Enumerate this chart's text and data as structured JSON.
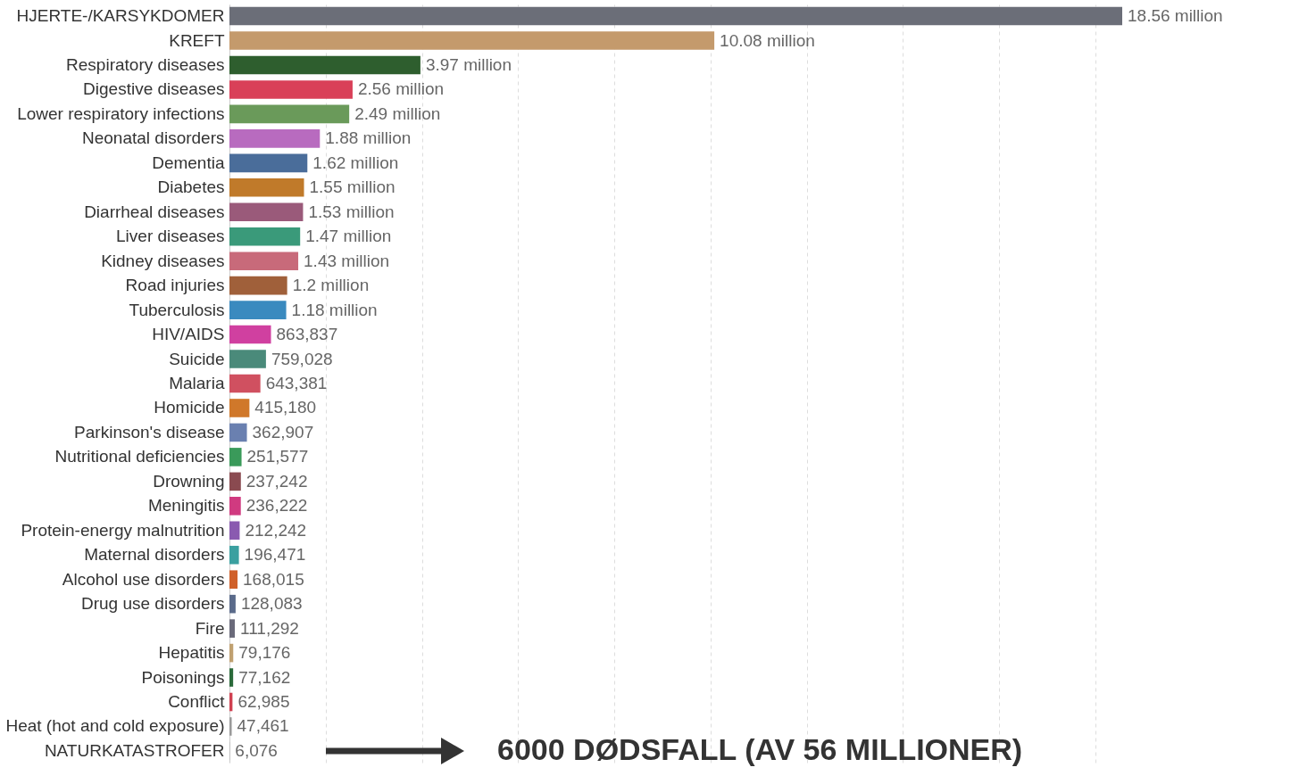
{
  "chart_data": {
    "type": "bar",
    "orientation": "horizontal",
    "categories": [
      "HJERTE-/KARSYKDOMER",
      "KREFT",
      "Respiratory diseases",
      "Digestive diseases",
      "Lower respiratory infections",
      "Neonatal disorders",
      "Dementia",
      "Diabetes",
      "Diarrheal diseases",
      "Liver diseases",
      "Kidney diseases",
      "Road injuries",
      "Tuberculosis",
      "HIV/AIDS",
      "Suicide",
      "Malaria",
      "Homicide",
      "Parkinson's disease",
      "Nutritional deficiencies",
      "Drowning",
      "Meningitis",
      "Protein-energy malnutrition",
      "Maternal disorders",
      "Alcohol use disorders",
      "Drug use disorders",
      "Fire",
      "Hepatitis",
      "Poisonings",
      "Conflict",
      "Heat (hot and cold exposure)",
      "NATURKATASTROFER"
    ],
    "values": [
      18560000,
      10080000,
      3970000,
      2560000,
      2490000,
      1880000,
      1620000,
      1550000,
      1530000,
      1470000,
      1430000,
      1200000,
      1180000,
      863837,
      759028,
      643381,
      415180,
      362907,
      251577,
      237242,
      236222,
      212242,
      196471,
      168015,
      128083,
      111292,
      79176,
      77162,
      62985,
      47461,
      6076
    ],
    "value_labels": [
      "18.56 million",
      "10.08 million",
      "3.97 million",
      "2.56 million",
      "2.49 million",
      "1.88 million",
      "1.62 million",
      "1.55 million",
      "1.53 million",
      "1.47 million",
      "1.43 million",
      "1.2 million",
      "1.18 million",
      "863,837",
      "759,028",
      "643,381",
      "415,180",
      "362,907",
      "251,577",
      "237,242",
      "236,222",
      "212,242",
      "196,471",
      "168,015",
      "128,083",
      "111,292",
      "79,176",
      "77,162",
      "62,985",
      "47,461",
      "6,076"
    ],
    "colors": [
      "#6b6e78",
      "#c49a6c",
      "#2e5e2e",
      "#d94058",
      "#6a9a5a",
      "#b86bbf",
      "#4a6d9a",
      "#c07a2a",
      "#9a5a7a",
      "#3a9a7a",
      "#c86a7a",
      "#a0603a",
      "#3a8abf",
      "#d040a0",
      "#4a8a7a",
      "#d05060",
      "#d0782a",
      "#6a80b0",
      "#3a9a5a",
      "#8a4a50",
      "#d03a80",
      "#8a5ab0",
      "#3aa0a0",
      "#d0602a",
      "#5a6a8a",
      "#6a6a7a",
      "#c0a070",
      "#2a6a3a",
      "#d04050",
      "#9a9a9a",
      "#aaaaaa"
    ],
    "xticks": [
      {
        "value": 0,
        "label": null
      },
      {
        "value": 2000000,
        "label": null
      },
      {
        "value": 4000000,
        "label": null
      },
      {
        "value": 6000000,
        "label": null
      },
      {
        "value": 8000000,
        "label": null
      },
      {
        "value": 10000000,
        "label": null
      },
      {
        "value": 12000000,
        "label": null
      },
      {
        "value": 14000000,
        "label": null
      },
      {
        "value": 16000000,
        "label": null
      },
      {
        "value": 18000000,
        "label": null
      }
    ],
    "grid": "x",
    "tick_labels": "y",
    "annotations": [
      "6000 DØDSFALL (AV 56 MILLIONER)"
    ]
  }
}
